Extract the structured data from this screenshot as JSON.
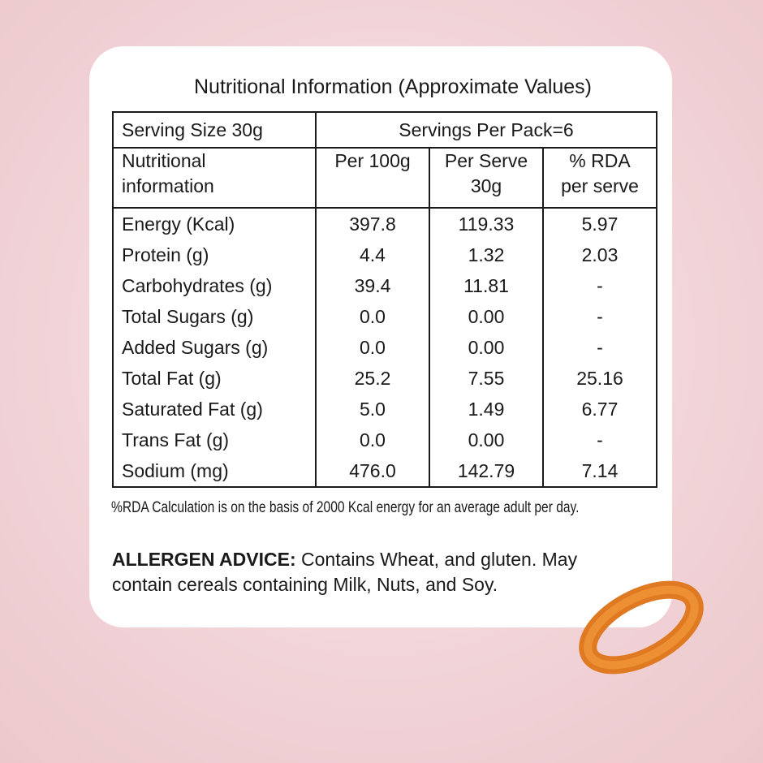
{
  "title": "Nutritional Information (Approximate Values)",
  "table": {
    "serving_size": "Serving Size 30g",
    "servings_per_pack": "Servings Per Pack=6",
    "columns": [
      [
        "Nutritional",
        "information"
      ],
      [
        "Per 100g"
      ],
      [
        "Per Serve",
        "30g"
      ],
      [
        "% RDA",
        "per serve"
      ]
    ],
    "rows": [
      [
        "Energy (Kcal)",
        "397.8",
        "119.33",
        "5.97"
      ],
      [
        "Protein (g)",
        "4.4",
        "1.32",
        "2.03"
      ],
      [
        "Carbohydrates (g)",
        "39.4",
        "11.81",
        "-"
      ],
      [
        "Total Sugars (g)",
        "0.0",
        "0.00",
        "-"
      ],
      [
        "Added Sugars (g)",
        "0.0",
        "0.00",
        "-"
      ],
      [
        "Total Fat (g)",
        "25.2",
        "7.55",
        "25.16"
      ],
      [
        "Saturated Fat (g)",
        "5.0",
        "1.49",
        "6.77"
      ],
      [
        "Trans Fat (g)",
        "0.0",
        "0.00",
        "-"
      ],
      [
        "Sodium (mg)",
        "476.0",
        "142.79",
        "7.14"
      ]
    ]
  },
  "footnote": "%RDA Calculation is on the basis of 2000 Kcal energy for an average adult per day.",
  "allergen": {
    "label": "ALLERGEN ADVICE:",
    "text": "Contains Wheat, and gluten. May contain cereals containing Milk, Nuts, and Soy."
  }
}
